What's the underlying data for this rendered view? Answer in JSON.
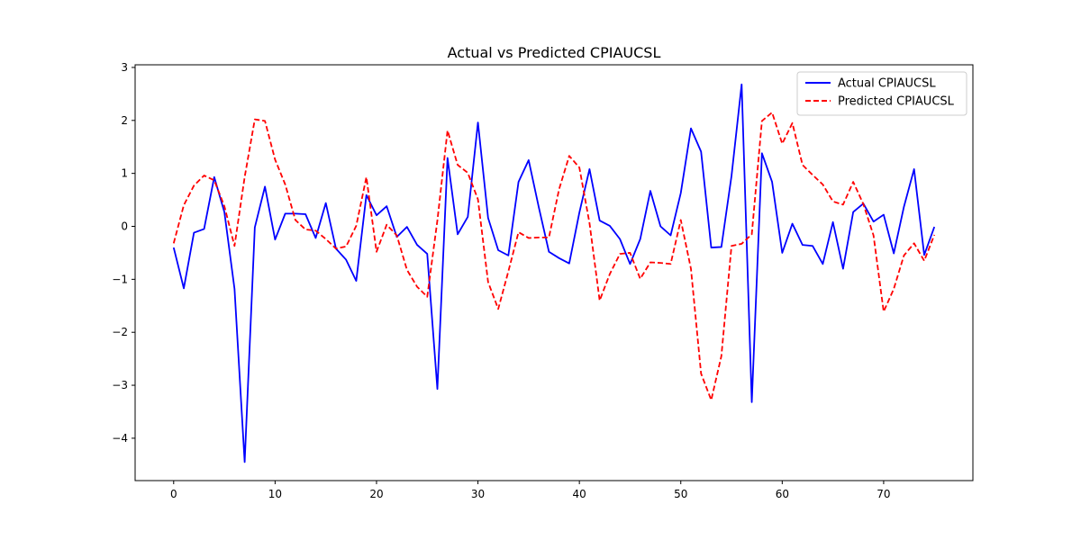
{
  "chart_data": {
    "type": "line",
    "title": "Actual vs Predicted CPIAUCSL",
    "xlabel": "",
    "ylabel": "",
    "xlim": [
      -3.8,
      78.8
    ],
    "ylim": [
      -4.8,
      3.05
    ],
    "xticks": [
      0,
      10,
      20,
      30,
      40,
      50,
      60,
      70
    ],
    "yticks": [
      -4,
      -3,
      -2,
      -1,
      0,
      1,
      2,
      3
    ],
    "grid": false,
    "legend_position": "top-right",
    "x": [
      0,
      1,
      2,
      3,
      4,
      5,
      6,
      7,
      8,
      9,
      10,
      11,
      12,
      13,
      14,
      15,
      16,
      17,
      18,
      19,
      20,
      21,
      22,
      23,
      24,
      25,
      26,
      27,
      28,
      29,
      30,
      31,
      32,
      33,
      34,
      35,
      36,
      37,
      38,
      39,
      40,
      41,
      42,
      43,
      44,
      45,
      46,
      47,
      48,
      49,
      50,
      51,
      52,
      53,
      54,
      55,
      56,
      57,
      58,
      59,
      60,
      61,
      62,
      63,
      64,
      65,
      66,
      67,
      68,
      69,
      70,
      71,
      72,
      73,
      74,
      75
    ],
    "series": [
      {
        "name": "Actual CPIAUCSL",
        "color": "#0000ff",
        "style": "solid",
        "values": [
          -0.4,
          -1.17,
          -0.12,
          -0.05,
          0.93,
          0.27,
          -1.18,
          -4.45,
          -0.02,
          0.75,
          -0.25,
          0.24,
          0.24,
          0.23,
          -0.22,
          0.44,
          -0.42,
          -0.63,
          -1.03,
          0.59,
          0.21,
          0.38,
          -0.2,
          -0.01,
          -0.35,
          -0.52,
          -3.07,
          1.29,
          -0.15,
          0.18,
          1.96,
          0.16,
          -0.45,
          -0.55,
          0.84,
          1.25,
          0.36,
          -0.48,
          -0.6,
          -0.7,
          0.26,
          1.08,
          0.11,
          0.01,
          -0.24,
          -0.71,
          -0.24,
          0.67,
          0.0,
          -0.17,
          0.63,
          1.85,
          1.41,
          -0.4,
          -0.39,
          0.95,
          2.68,
          -3.32,
          1.38,
          0.84,
          -0.5,
          0.05,
          -0.35,
          -0.37,
          -0.71,
          0.08,
          -0.8,
          0.27,
          0.43,
          0.09,
          0.22,
          -0.51,
          0.37,
          1.08,
          -0.54,
          -0.01
        ]
      },
      {
        "name": "Predicted CPIAUCSL",
        "color": "#ff0000",
        "style": "dashed",
        "values": [
          -0.32,
          0.4,
          0.77,
          0.96,
          0.87,
          0.38,
          -0.37,
          0.93,
          2.02,
          1.99,
          1.26,
          0.79,
          0.12,
          -0.06,
          -0.08,
          -0.24,
          -0.42,
          -0.38,
          0.01,
          0.93,
          -0.48,
          0.03,
          -0.17,
          -0.82,
          -1.14,
          -1.33,
          0.11,
          1.81,
          1.16,
          1.01,
          0.51,
          -1.05,
          -1.56,
          -0.85,
          -0.11,
          -0.22,
          -0.21,
          -0.21,
          0.7,
          1.33,
          1.11,
          0.06,
          -1.4,
          -0.9,
          -0.52,
          -0.5,
          -0.99,
          -0.68,
          -0.69,
          -0.71,
          0.12,
          -0.8,
          -2.78,
          -3.28,
          -2.45,
          -0.37,
          -0.33,
          -0.15,
          1.99,
          2.15,
          1.56,
          1.95,
          1.16,
          0.97,
          0.79,
          0.47,
          0.41,
          0.84,
          0.42,
          -0.17,
          -1.61,
          -1.18,
          -0.55,
          -0.32,
          -0.65,
          -0.16
        ]
      }
    ]
  }
}
